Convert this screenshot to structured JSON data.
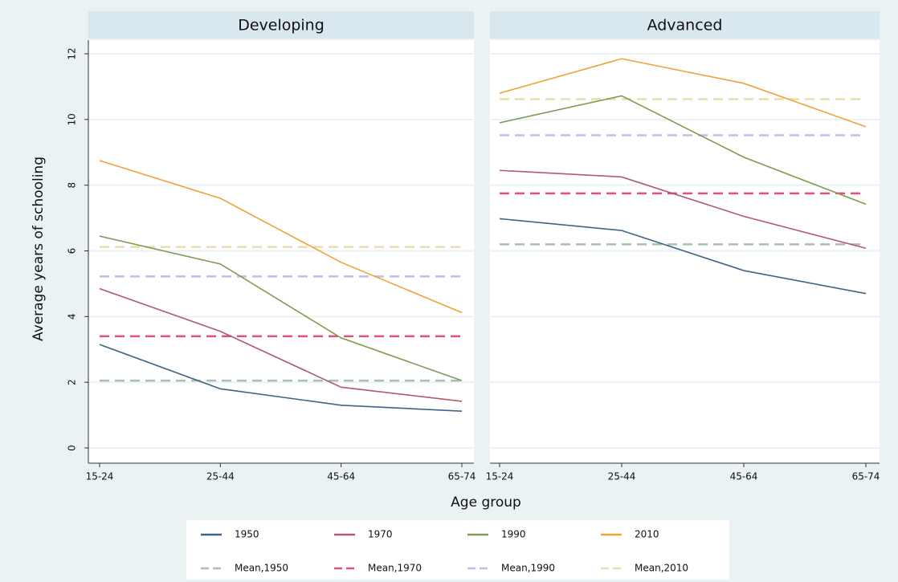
{
  "chart_data": {
    "type": "line",
    "ylabel": "Average years of schooling",
    "xlabel": "Age group",
    "categories": [
      "15-24",
      "25-44",
      "45-64",
      "65-74"
    ],
    "ylim": [
      0,
      12
    ],
    "yticks": [
      0,
      2,
      4,
      6,
      8,
      10,
      12
    ],
    "grid": true,
    "legend": [
      {
        "name": "1950",
        "color": "#3e6488",
        "dash": false
      },
      {
        "name": "1970",
        "color": "#b05a6c",
        "dash": false
      },
      {
        "name": "1990",
        "color": "#7f9b52",
        "dash": false
      },
      {
        "name": "2010",
        "color": "#f0a236",
        "dash": false
      },
      {
        "name": "Mean,1950",
        "color": "#a9c0b2",
        "dash": true
      },
      {
        "name": "Mean,1970",
        "color": "#e0507c",
        "dash": true
      },
      {
        "name": "Mean,1990",
        "color": "#c3bbea",
        "dash": true
      },
      {
        "name": "Mean,2010",
        "color": "#e9dda9",
        "dash": true
      }
    ],
    "panels": [
      {
        "title": "Developing",
        "lines": [
          [
            3.15,
            1.8,
            1.3,
            1.12
          ],
          [
            4.85,
            3.55,
            1.85,
            1.42
          ],
          [
            6.45,
            5.6,
            3.35,
            2.05
          ],
          [
            8.75,
            7.6,
            5.65,
            4.12
          ]
        ],
        "means": [
          2.05,
          3.4,
          5.22,
          6.12
        ]
      },
      {
        "title": "Advanced",
        "lines": [
          [
            6.98,
            6.62,
            5.4,
            4.7
          ],
          [
            8.45,
            8.25,
            7.05,
            6.08
          ],
          [
            9.9,
            10.72,
            8.85,
            7.42
          ],
          [
            10.8,
            11.85,
            11.1,
            9.78
          ]
        ],
        "means": [
          6.2,
          7.75,
          9.52,
          10.62
        ]
      }
    ]
  }
}
